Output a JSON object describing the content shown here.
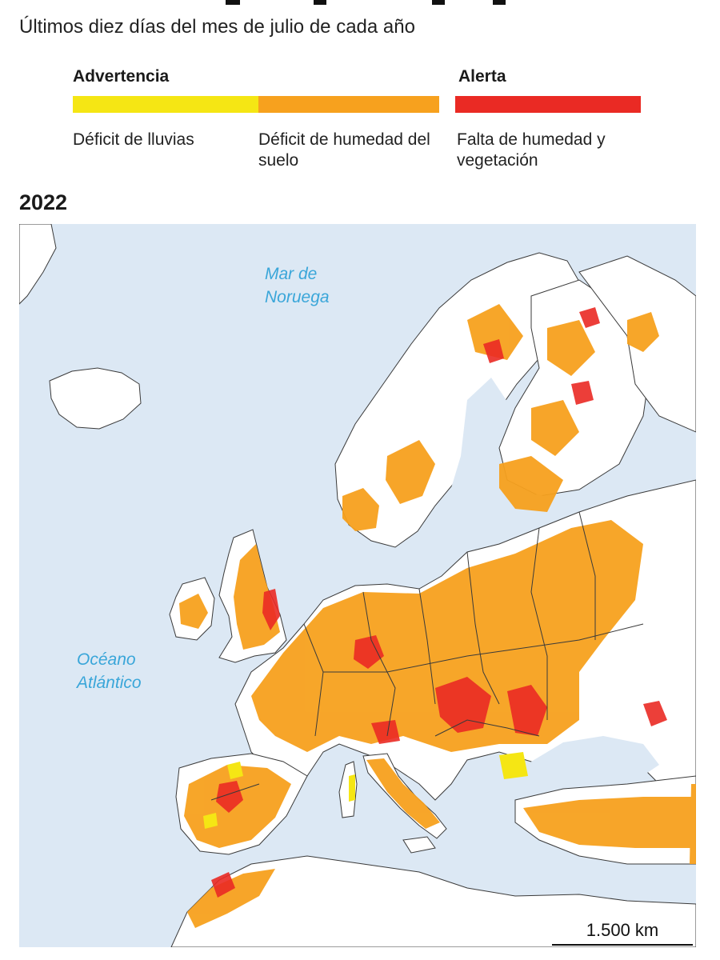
{
  "subtitle": "Últimos diez días del mes de julio de cada año",
  "legend": {
    "headers": {
      "warning": "Advertencia",
      "alert": "Alerta"
    },
    "items": [
      {
        "label": "Déficit de lluvias",
        "color": "#f5e614"
      },
      {
        "label": "Déficit de humedad del suelo",
        "color": "#f7a11e"
      },
      {
        "label": "Falta de humedad y vegetación",
        "color": "#ea2a24"
      }
    ]
  },
  "map": {
    "year": "2022",
    "sea_labels": {
      "norway_sea": [
        "Mar de",
        "Noruega"
      ],
      "atlantic": [
        "Océano",
        "Atlántico"
      ]
    },
    "scale_bar": "1.500 km",
    "colors": {
      "sea": "#dce8f4",
      "land": "#ffffff",
      "border": "#3a3a3a"
    }
  }
}
